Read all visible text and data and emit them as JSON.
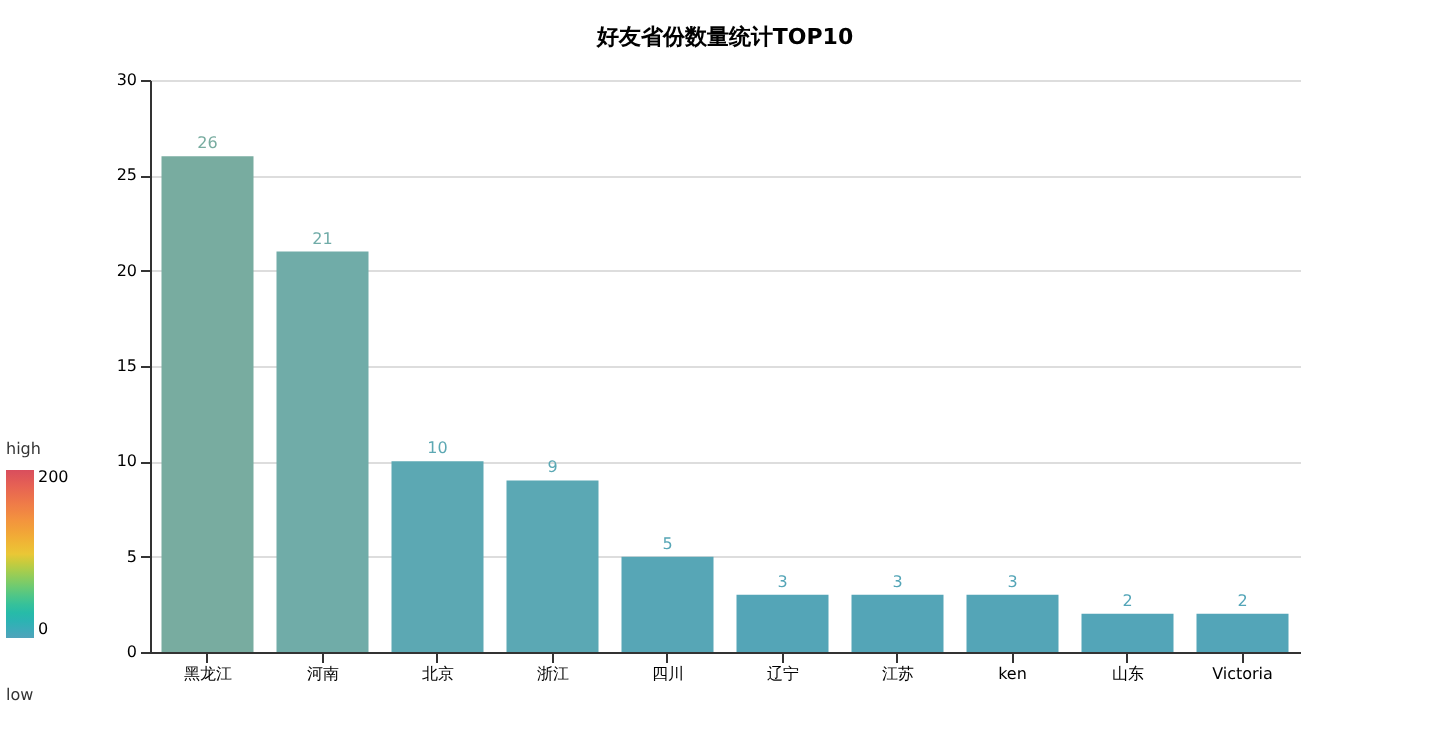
{
  "chart_data": {
    "type": "bar",
    "title": "好友省份数量统计TOP10",
    "categories": [
      "黑龙江",
      "河南",
      "北京",
      "浙江",
      "四川",
      "辽宁",
      "江苏",
      "ken",
      "山东",
      "Victoria"
    ],
    "values": [
      26,
      21,
      10,
      9,
      5,
      3,
      3,
      3,
      2,
      2
    ],
    "colors": [
      "#78aca0",
      "#70aca8",
      "#5ca8b3",
      "#5ba8b4",
      "#57a6b6",
      "#54a5b7",
      "#54a5b7",
      "#54a5b7",
      "#53a5b8",
      "#53a5b8"
    ],
    "ylim": [
      0,
      30
    ],
    "yticks": [
      0,
      5,
      10,
      15,
      20,
      25,
      30
    ],
    "grid": "y",
    "data_labels": true,
    "legend": false,
    "clim": [
      0,
      200
    ],
    "cticks": [
      0,
      200
    ],
    "annotations": [
      "high",
      "low"
    ]
  }
}
